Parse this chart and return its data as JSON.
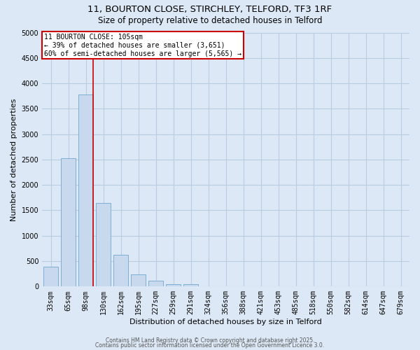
{
  "title_line1": "11, BOURTON CLOSE, STIRCHLEY, TELFORD, TF3 1RF",
  "title_line2": "Size of property relative to detached houses in Telford",
  "xlabel": "Distribution of detached houses by size in Telford",
  "ylabel": "Number of detached properties",
  "categories": [
    "33sqm",
    "65sqm",
    "98sqm",
    "130sqm",
    "162sqm",
    "195sqm",
    "227sqm",
    "259sqm",
    "291sqm",
    "324sqm",
    "356sqm",
    "388sqm",
    "421sqm",
    "453sqm",
    "485sqm",
    "518sqm",
    "550sqm",
    "582sqm",
    "614sqm",
    "647sqm",
    "679sqm"
  ],
  "values": [
    390,
    2530,
    3780,
    1650,
    620,
    240,
    110,
    50,
    50,
    0,
    0,
    0,
    0,
    0,
    0,
    0,
    0,
    0,
    0,
    0,
    0
  ],
  "bar_color": "#c8d9ed",
  "bar_edgecolor": "#7bafd4",
  "vline_x_idx": 2,
  "vline_color": "#cc0000",
  "annotation_title": "11 BOURTON CLOSE: 105sqm",
  "annotation_line2": "← 39% of detached houses are smaller (3,651)",
  "annotation_line3": "60% of semi-detached houses are larger (5,565) →",
  "annotation_box_color": "white",
  "annotation_box_edgecolor": "#cc0000",
  "ylim": [
    0,
    5000
  ],
  "yticks": [
    0,
    500,
    1000,
    1500,
    2000,
    2500,
    3000,
    3500,
    4000,
    4500,
    5000
  ],
  "background_color": "#dce8f5",
  "grid_color": "#b8cce4",
  "footer_line1": "Contains HM Land Registry data © Crown copyright and database right 2025.",
  "footer_line2": "Contains public sector information licensed under the Open Government Licence 3.0.",
  "title_fontsize": 9.5,
  "subtitle_fontsize": 8.5,
  "ylabel_fontsize": 8,
  "xlabel_fontsize": 8,
  "tick_fontsize": 7,
  "annot_fontsize": 7,
  "footer_fontsize": 5.5
}
